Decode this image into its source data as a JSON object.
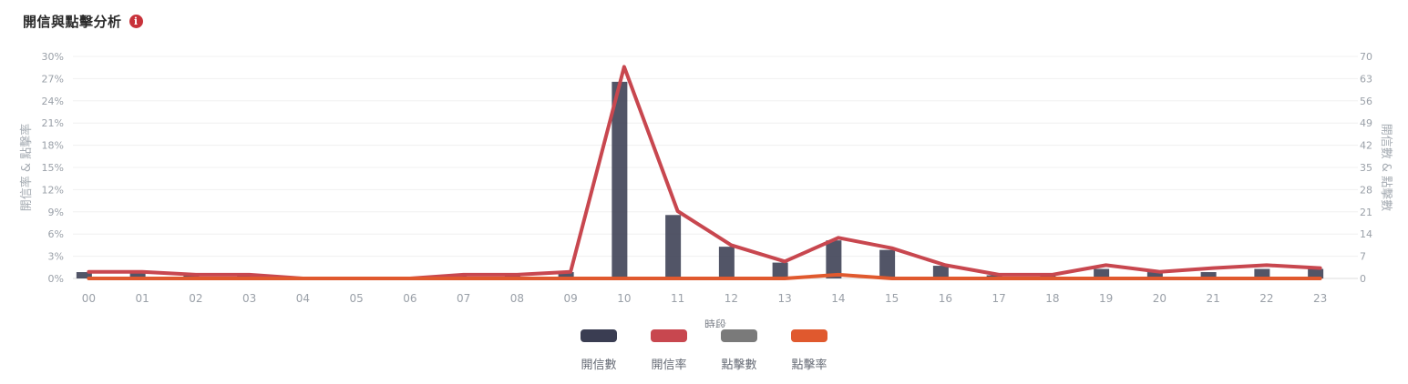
{
  "header": {
    "title": "開信與點擊分析",
    "info_glyph": "i",
    "info_icon": "info-icon"
  },
  "colors": {
    "open_count": "#3a3d52",
    "open_rate": "#c8474f",
    "click_count": "#7a7a7a",
    "click_rate": "#e0592e",
    "grid": "#f0f0f0",
    "axis_text": "#9aa0a8"
  },
  "chart_data": {
    "type": "bar",
    "xlabel": "時段",
    "ylabel_left": "開信率 & 點擊率",
    "ylabel_right": "開信數 & 點擊數",
    "categories": [
      "00",
      "01",
      "02",
      "03",
      "04",
      "05",
      "06",
      "07",
      "08",
      "09",
      "10",
      "11",
      "12",
      "13",
      "14",
      "15",
      "16",
      "17",
      "18",
      "19",
      "20",
      "21",
      "22",
      "23"
    ],
    "ylim_left": [
      0,
      30
    ],
    "yticks_left": [
      "0%",
      "3%",
      "6%",
      "9%",
      "12%",
      "15%",
      "18%",
      "21%",
      "24%",
      "27%",
      "30%"
    ],
    "ylim_right": [
      0,
      70
    ],
    "yticks_right": [
      "0",
      "7",
      "14",
      "21",
      "28",
      "35",
      "42",
      "49",
      "56",
      "63",
      "70"
    ],
    "grid": true,
    "legend_position": "bottom-center",
    "series": [
      {
        "name": "開信數",
        "type": "bar",
        "axis": "right",
        "values": [
          2,
          2,
          1,
          1,
          0,
          0,
          0,
          1,
          1,
          2,
          62,
          20,
          10,
          5,
          12,
          9,
          4,
          1,
          1,
          3,
          2,
          2,
          3,
          3
        ]
      },
      {
        "name": "開信率",
        "type": "line",
        "axis": "left",
        "values": [
          0.9,
          0.9,
          0.5,
          0.5,
          0,
          0,
          0,
          0.5,
          0.5,
          0.9,
          28.6,
          9.1,
          4.5,
          2.3,
          5.5,
          4.1,
          1.8,
          0.5,
          0.5,
          1.8,
          0.9,
          1.4,
          1.8,
          1.4
        ]
      },
      {
        "name": "點擊數",
        "type": "bar",
        "axis": "right",
        "values": [
          0,
          0,
          0,
          0,
          0,
          0,
          0,
          0,
          0,
          0,
          0,
          0,
          0,
          0,
          0,
          0,
          0,
          0,
          0,
          0,
          0,
          0,
          0,
          0
        ]
      },
      {
        "name": "點擊率",
        "type": "line",
        "axis": "left",
        "values": [
          0,
          0,
          0,
          0,
          0,
          0,
          0,
          0,
          0,
          0,
          0,
          0,
          0,
          0,
          0.5,
          0,
          0,
          0,
          0,
          0,
          0,
          0,
          0,
          0
        ]
      }
    ]
  }
}
